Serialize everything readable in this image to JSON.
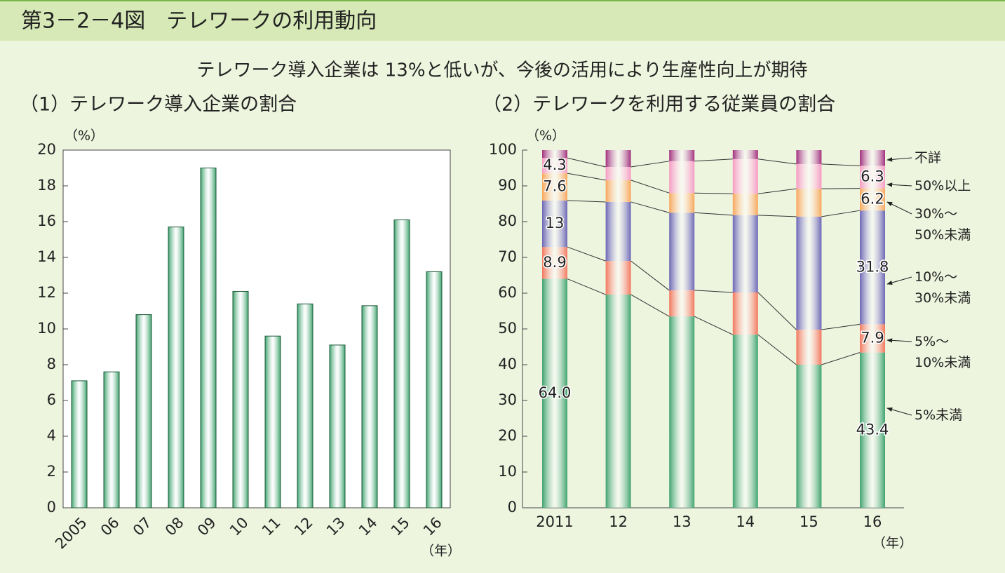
{
  "figure_title": "第3－2－4図　テレワークの利用動向",
  "headline": "テレワーク導入企業は 13%と低いが、今後の活用により生産性向上が期待",
  "chart_data": [
    {
      "type": "bar",
      "title": "（1）テレワーク導入企業の割合",
      "ylabel": "（%）",
      "xlabel": "（年）",
      "categories": [
        "2005",
        "06",
        "07",
        "08",
        "09",
        "10",
        "11",
        "12",
        "13",
        "14",
        "15",
        "16"
      ],
      "values": [
        7.1,
        7.6,
        10.8,
        15.7,
        19.0,
        12.1,
        9.6,
        11.4,
        9.1,
        11.3,
        16.1,
        13.2
      ],
      "color": "#3fa36e",
      "ylim": [
        0,
        20
      ],
      "yticks": [
        0,
        2,
        4,
        6,
        8,
        10,
        12,
        14,
        16,
        18,
        20
      ]
    },
    {
      "type": "stacked_bar",
      "title": "（2）テレワークを利用する従業員の割合",
      "ylabel": "（%）",
      "xlabel": "（年）",
      "categories": [
        "2011",
        "12",
        "13",
        "14",
        "15",
        "16"
      ],
      "ylim": [
        0,
        100
      ],
      "yticks": [
        0,
        10,
        20,
        30,
        40,
        50,
        60,
        70,
        80,
        90,
        100
      ],
      "series": [
        {
          "name": "5%未満",
          "color": "#3fa36e",
          "values": [
            64.0,
            59.6,
            53.5,
            48.4,
            40.0,
            43.4
          ],
          "value_labels": [
            "64.0",
            null,
            null,
            null,
            null,
            "43.4"
          ]
        },
        {
          "name": "5%～\n10%未満",
          "color": "#f2765c",
          "values": [
            8.9,
            9.4,
            7.3,
            11.8,
            9.8,
            7.9
          ],
          "value_labels": [
            "8.9",
            null,
            null,
            null,
            null,
            "7.9"
          ]
        },
        {
          "name": "10%～\n30%未満",
          "color": "#6c66b4",
          "values": [
            13,
            16.5,
            21.7,
            21.6,
            31.6,
            31.8
          ],
          "value_labels": [
            "13",
            null,
            null,
            null,
            null,
            "31.8"
          ]
        },
        {
          "name": "30%～\n50%未満",
          "color": "#f8a65a",
          "values": [
            7.6,
            6.1,
            5.5,
            6.0,
            7.8,
            6.2
          ],
          "value_labels": [
            "7.6",
            null,
            null,
            null,
            null,
            "6.2"
          ]
        },
        {
          "name": "50%以上",
          "color": "#f59ac2",
          "values": [
            4.3,
            3.7,
            8.9,
            9.7,
            6.9,
            6.3
          ],
          "value_labels": [
            "4.3",
            null,
            null,
            null,
            null,
            "6.3"
          ]
        },
        {
          "name": "不詳",
          "color": "#a2307e",
          "values": [
            2.2,
            4.7,
            3.1,
            2.5,
            3.9,
            4.4
          ]
        }
      ]
    }
  ]
}
